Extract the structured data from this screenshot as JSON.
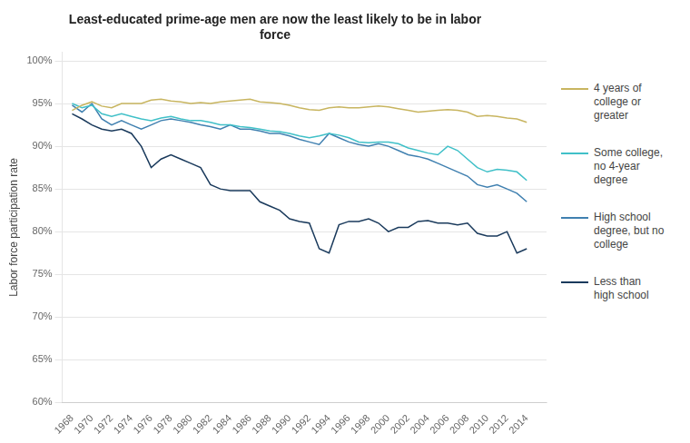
{
  "chart_data": {
    "type": "line",
    "title": "Least-educated prime-age men are now the least likely to be in labor\nforce",
    "ylabel": "Labor force participation rate",
    "x": [
      1968,
      1969,
      1970,
      1971,
      1972,
      1973,
      1974,
      1975,
      1976,
      1977,
      1978,
      1979,
      1980,
      1981,
      1982,
      1983,
      1984,
      1985,
      1986,
      1987,
      1988,
      1989,
      1990,
      1991,
      1992,
      1993,
      1994,
      1995,
      1996,
      1997,
      1998,
      1999,
      2000,
      2001,
      2002,
      2003,
      2004,
      2005,
      2006,
      2007,
      2008,
      2009,
      2010,
      2011,
      2012,
      2013,
      2014
    ],
    "series": [
      {
        "name": "4 years of\ncollege or\ngreater",
        "color": "#c8b560",
        "values": [
          94.2,
          94.8,
          95.2,
          94.7,
          94.5,
          95.0,
          95.0,
          95.0,
          95.4,
          95.5,
          95.3,
          95.2,
          95.0,
          95.1,
          95.0,
          95.2,
          95.3,
          95.4,
          95.5,
          95.2,
          95.1,
          95.0,
          94.8,
          94.5,
          94.3,
          94.2,
          94.5,
          94.6,
          94.5,
          94.5,
          94.6,
          94.7,
          94.6,
          94.4,
          94.2,
          94.0,
          94.1,
          94.2,
          94.3,
          94.2,
          94.0,
          93.5,
          93.6,
          93.5,
          93.3,
          93.2,
          92.8
        ]
      },
      {
        "name": "Some college,\nno 4-year\ndegree",
        "color": "#40c0c8",
        "values": [
          95.0,
          94.5,
          94.8,
          93.8,
          93.5,
          93.8,
          93.5,
          93.2,
          93.0,
          93.3,
          93.5,
          93.2,
          93.0,
          93.0,
          92.8,
          92.5,
          92.5,
          92.3,
          92.2,
          92.0,
          91.8,
          91.7,
          91.5,
          91.2,
          91.0,
          91.2,
          91.5,
          91.3,
          91.0,
          90.5,
          90.4,
          90.5,
          90.5,
          90.3,
          89.8,
          89.5,
          89.2,
          89.0,
          90.0,
          89.5,
          88.5,
          87.5,
          87.0,
          87.3,
          87.2,
          87.0,
          86.0
        ]
      },
      {
        "name": "High school\ndegree, but no\ncollege",
        "color": "#4080b0",
        "values": [
          94.8,
          94.0,
          95.0,
          93.2,
          92.5,
          93.0,
          92.5,
          92.0,
          92.5,
          93.0,
          93.2,
          93.0,
          92.8,
          92.5,
          92.3,
          92.0,
          92.5,
          92.0,
          92.0,
          91.8,
          91.5,
          91.5,
          91.2,
          90.8,
          90.5,
          90.2,
          91.5,
          91.0,
          90.5,
          90.2,
          90.0,
          90.3,
          90.0,
          89.5,
          89.0,
          88.8,
          88.5,
          88.0,
          87.5,
          87.0,
          86.5,
          85.5,
          85.2,
          85.5,
          85.0,
          84.5,
          83.5
        ]
      },
      {
        "name": "Less than\nhigh school",
        "color": "#1a3a5c",
        "values": [
          93.8,
          93.2,
          92.5,
          92.0,
          91.8,
          92.0,
          91.5,
          90.0,
          87.5,
          88.5,
          89.0,
          88.5,
          88.0,
          87.5,
          85.5,
          85.0,
          84.8,
          84.8,
          84.8,
          83.5,
          83.0,
          82.5,
          81.5,
          81.2,
          81.0,
          78.0,
          77.5,
          80.8,
          81.2,
          81.2,
          81.5,
          81.0,
          80.0,
          80.5,
          80.5,
          81.2,
          81.3,
          81.0,
          81.0,
          80.8,
          81.0,
          79.8,
          79.5,
          79.5,
          80.0,
          77.5,
          78.0
        ]
      }
    ],
    "xlim": [
      1967,
      2016
    ],
    "xticks": [
      1968,
      1970,
      1972,
      1974,
      1976,
      1978,
      1980,
      1982,
      1984,
      1986,
      1988,
      1990,
      1992,
      1994,
      1996,
      1998,
      2000,
      2002,
      2004,
      2006,
      2008,
      2010,
      2012,
      2014
    ],
    "ylim": [
      60,
      101
    ],
    "yticks": [
      {
        "value": 60,
        "label": "60%"
      },
      {
        "value": 65,
        "label": "65%"
      },
      {
        "value": 70,
        "label": "70%"
      },
      {
        "value": 75,
        "label": "75%"
      },
      {
        "value": 80,
        "label": "80%"
      },
      {
        "value": 85,
        "label": "85%"
      },
      {
        "value": 90,
        "label": "90%"
      },
      {
        "value": 95,
        "label": "95%"
      },
      {
        "value": 100,
        "label": "100%"
      }
    ],
    "grid": true,
    "legend": "right"
  }
}
